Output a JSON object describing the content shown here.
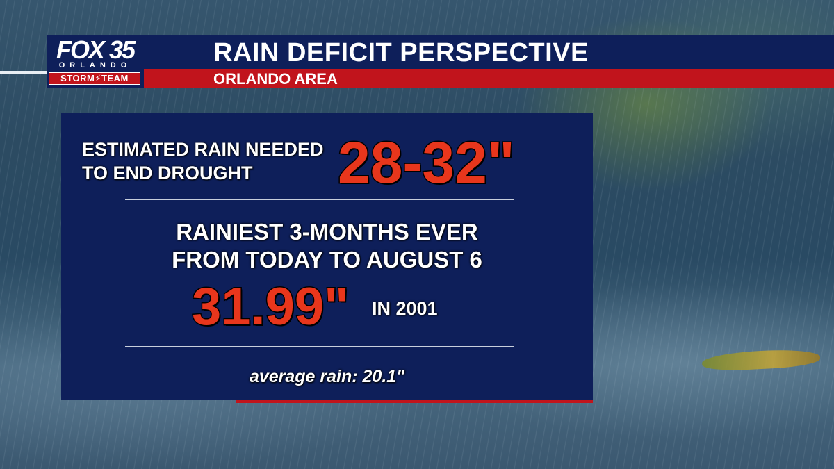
{
  "header": {
    "logo": {
      "station": "FOX 35",
      "city": "ORLANDO",
      "team": "STORM⚡TEAM"
    },
    "title": "RAIN DEFICIT PERSPECTIVE",
    "subtitle": "ORLANDO AREA"
  },
  "panel": {
    "estimate_label_line1": "ESTIMATED RAIN NEEDED",
    "estimate_label_line2": "TO END DROUGHT",
    "estimate_value": "28-32\"",
    "rainiest_line1": "RAINIEST 3-MONTHS EVER",
    "rainiest_line2": "FROM TODAY TO AUGUST 6",
    "record_value": "31.99\"",
    "record_year": "IN 2001",
    "average": "average rain: 20.1\""
  },
  "colors": {
    "navy": "#0e1f5a",
    "red": "#c1141c",
    "value_red": "#e8361c"
  }
}
